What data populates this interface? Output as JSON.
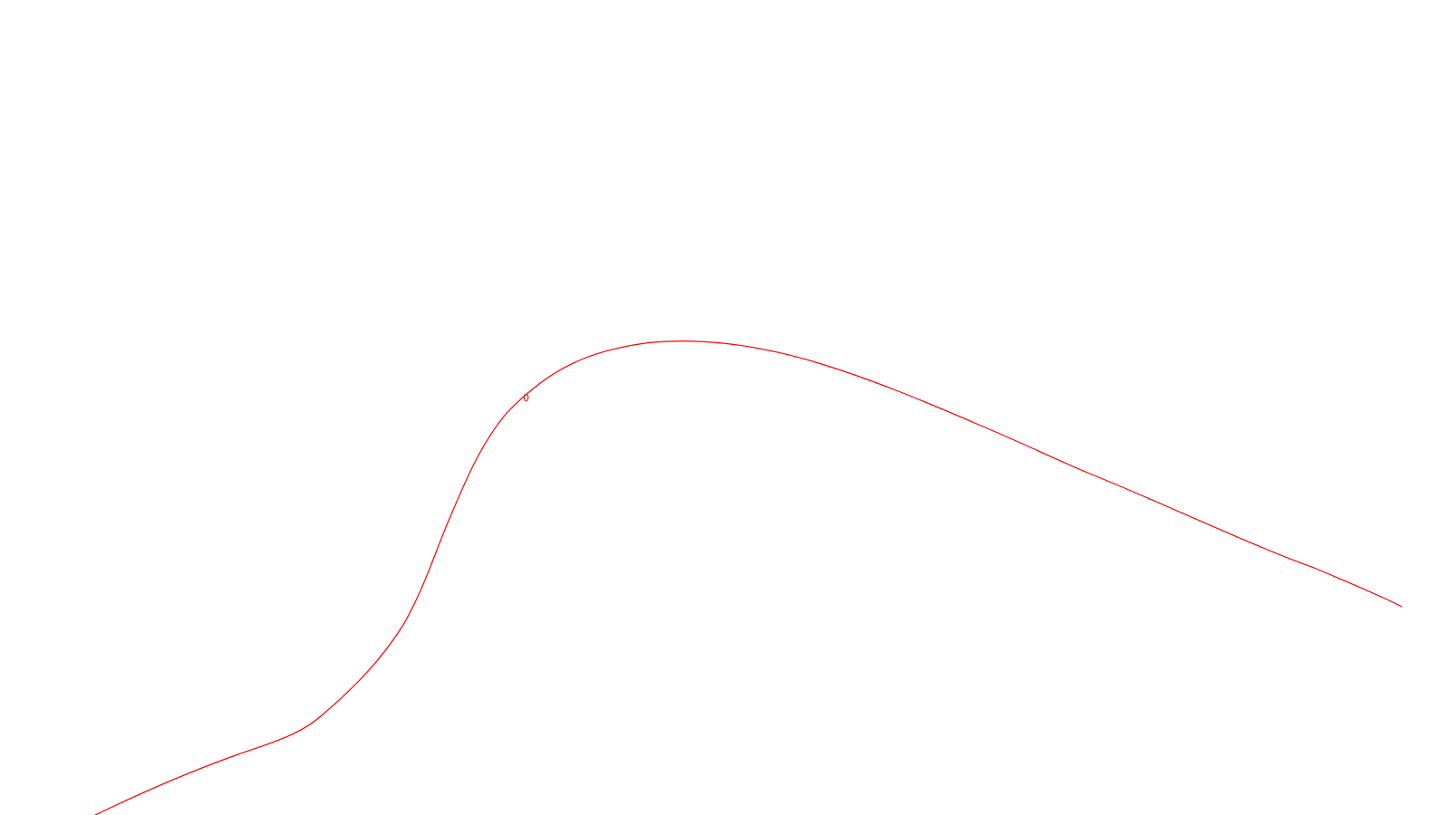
{
  "drawing": {
    "background_color": "#ffffff",
    "curve_color": "#ff0000",
    "curve_label": "0"
  }
}
